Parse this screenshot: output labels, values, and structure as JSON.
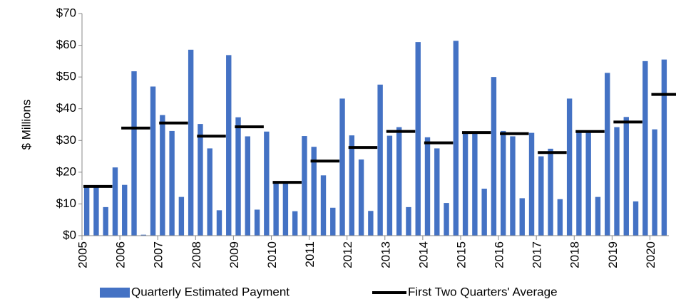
{
  "chart_data": {
    "type": "bar",
    "y_label": "$ Millions",
    "categories": [
      "2005",
      null,
      null,
      null,
      "2006",
      null,
      null,
      null,
      "2007",
      null,
      null,
      null,
      "2008",
      null,
      null,
      null,
      "2009",
      null,
      null,
      null,
      "2010",
      null,
      null,
      null,
      "2011",
      null,
      null,
      null,
      "2012",
      null,
      null,
      null,
      "2013",
      null,
      null,
      null,
      "2014",
      null,
      null,
      null,
      "2015",
      null,
      null,
      null,
      "2016",
      null,
      null,
      null,
      "2017",
      null,
      null,
      null,
      "2018",
      null,
      null,
      null,
      "2019",
      null,
      null,
      null,
      "2020",
      null
    ],
    "series": [
      {
        "name": "Quarterly Estimated Payment",
        "color": "#4472c4",
        "type": "bar",
        "values": [
          15.5,
          15.5,
          9,
          21.5,
          16,
          51.8,
          0.3,
          47,
          38,
          33,
          12.2,
          58.6,
          35.2,
          27.5,
          8,
          56.9,
          37.3,
          31.3,
          8.2,
          32.8,
          16.8,
          16.8,
          7.7,
          31.4,
          28,
          19,
          8.8,
          43.2,
          31.6,
          24,
          7.8,
          47.6,
          31.5,
          34.2,
          9,
          61,
          31,
          27.5,
          10.3,
          61.4,
          32.5,
          32.5,
          14.8,
          50,
          33,
          31.3,
          11.8,
          32.4,
          25,
          27.4,
          11.5,
          43.2,
          32.8,
          32.8,
          12.2,
          51.3,
          34.2,
          37.4,
          10.8,
          55,
          33.5,
          55.5
        ]
      },
      {
        "name": "First Two Quarters' Average",
        "color": "#000000",
        "type": "segment",
        "values": [
          15.5,
          null,
          null,
          null,
          33.9,
          null,
          null,
          null,
          35.5,
          null,
          null,
          null,
          31.35,
          null,
          null,
          null,
          34.3,
          null,
          null,
          null,
          16.8,
          null,
          null,
          null,
          23.5,
          null,
          null,
          null,
          27.8,
          null,
          null,
          null,
          32.85,
          null,
          null,
          null,
          29.25,
          null,
          null,
          null,
          32.5,
          null,
          null,
          null,
          32.15,
          null,
          null,
          null,
          26.2,
          null,
          null,
          null,
          32.8,
          null,
          null,
          null,
          35.8,
          null,
          null,
          null,
          44.5,
          null
        ]
      }
    ],
    "ylim": [
      0,
      70
    ],
    "yticks": [
      {
        "value": 0,
        "label": "$0"
      },
      {
        "value": 10,
        "label": "$10"
      },
      {
        "value": 20,
        "label": "$20"
      },
      {
        "value": 30,
        "label": "$30"
      },
      {
        "value": 40,
        "label": "$40"
      },
      {
        "value": 50,
        "label": "$50"
      },
      {
        "value": 60,
        "label": "$60"
      },
      {
        "value": 70,
        "label": "$70"
      }
    ],
    "grid": false,
    "legend": "bottom"
  }
}
